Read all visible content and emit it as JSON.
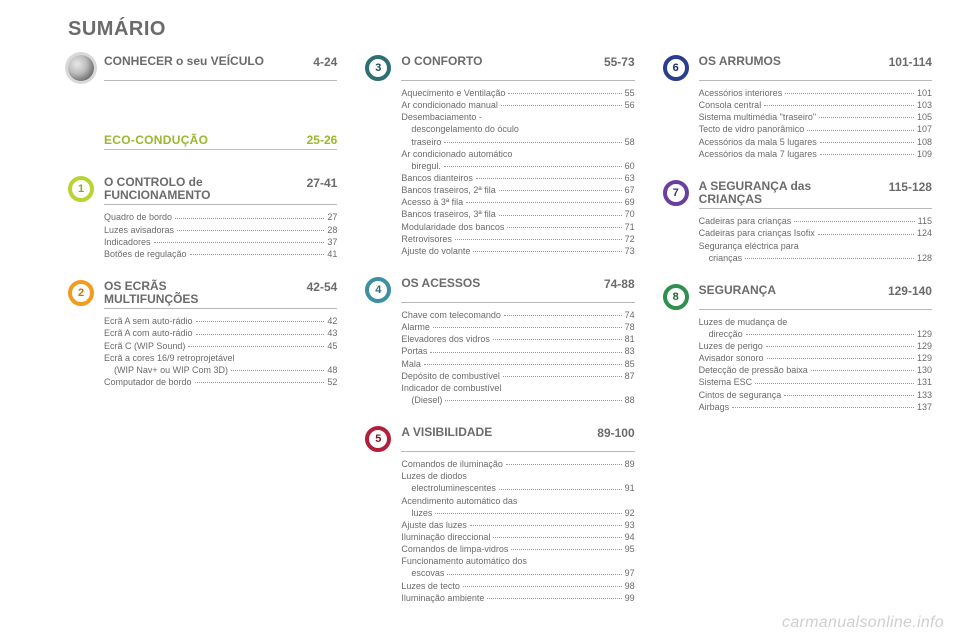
{
  "page_title": "SUMÁRIO",
  "watermark": "carmanualsonline.info",
  "colors": {
    "text": "#6b6b6b",
    "eco_green": "#9ab82e",
    "eco_underline": "#b8d84a",
    "section1": {
      "ring": "#b7d433",
      "num": "#8aa91f"
    },
    "section2": {
      "ring": "#f29c1f",
      "num": "#c97500"
    },
    "section3": {
      "ring": "#2e6f74",
      "num": "#1f4e52"
    },
    "section4": {
      "ring": "#3f8fa3",
      "num": "#2a6a7b"
    },
    "section5": {
      "ring": "#b0203a",
      "num": "#7d1428"
    },
    "section6": {
      "ring": "#2a3e8f",
      "num": "#1c2a66"
    },
    "section7": {
      "ring": "#6b3fa0",
      "num": "#4c2a75"
    },
    "section8": {
      "ring": "#2f8f4f",
      "num": "#1f6536"
    }
  },
  "intro": {
    "title": "CONHECER o seu VEÍCULO",
    "range": "4-24"
  },
  "eco": {
    "title": "ECO-CONDUÇÃO",
    "range": "25-26"
  },
  "sections": [
    {
      "id": "s1",
      "num": "1",
      "title_lines": [
        "O CONTROLO de",
        "FUNCIONAMENTO"
      ],
      "range": "27-41",
      "items": [
        {
          "label": "Quadro de bordo",
          "page": "27"
        },
        {
          "label": "Luzes avisadoras",
          "page": "28"
        },
        {
          "label": "Indicadores",
          "page": "37"
        },
        {
          "label": "Botões de regulação",
          "page": "41"
        }
      ]
    },
    {
      "id": "s2",
      "num": "2",
      "title_lines": [
        "OS ECRÃS",
        "MULTIFUNÇÕES"
      ],
      "range": "42-54",
      "items": [
        {
          "label": "Ecrã A sem auto-rádio",
          "page": "42"
        },
        {
          "label": "Ecrã A com auto-rádio",
          "page": "43"
        },
        {
          "label": "Ecrã C (WIP Sound)",
          "page": "45"
        },
        {
          "label": "Ecrã a cores 16/9 retroprojetável\n  (WIP Nav+ ou WIP Com 3D)",
          "page": "48"
        },
        {
          "label": "Computador de bordo",
          "page": "52"
        }
      ]
    },
    {
      "id": "s3",
      "num": "3",
      "title_lines": [
        "O CONFORTO"
      ],
      "range": "55-73",
      "items": [
        {
          "label": "Aquecimento e Ventilação",
          "page": "55"
        },
        {
          "label": "Ar condicionado manual",
          "page": "56"
        },
        {
          "label": "Desembaciamento -\n  descongelamento do óculo\n  traseiro",
          "page": "58"
        },
        {
          "label": "Ar condicionado automático\n  biregul.",
          "page": "60"
        },
        {
          "label": "Bancos dianteiros",
          "page": "63"
        },
        {
          "label": "Bancos traseiros, 2ª fila",
          "page": "67"
        },
        {
          "label": "Acesso à 3ª fila",
          "page": "69"
        },
        {
          "label": "Bancos traseiros, 3ª fila",
          "page": "70"
        },
        {
          "label": "Modularidade dos bancos",
          "page": "71"
        },
        {
          "label": "Retrovisores",
          "page": "72"
        },
        {
          "label": "Ajuste do volante",
          "page": "73"
        }
      ]
    },
    {
      "id": "s4",
      "num": "4",
      "title_lines": [
        "OS ACESSOS"
      ],
      "range": "74-88",
      "items": [
        {
          "label": "Chave com telecomando",
          "page": "74"
        },
        {
          "label": "Alarme",
          "page": "78"
        },
        {
          "label": "Elevadores dos vidros",
          "page": "81"
        },
        {
          "label": "Portas",
          "page": "83"
        },
        {
          "label": "Mala",
          "page": "85"
        },
        {
          "label": "Depósito de combustível",
          "page": "87"
        },
        {
          "label": "Indicador de combustível\n  (Diesel)",
          "page": "88"
        }
      ]
    },
    {
      "id": "s5",
      "num": "5",
      "title_lines": [
        "A VISIBILIDADE"
      ],
      "range": "89-100",
      "items": [
        {
          "label": "Comandos de iluminação",
          "page": "89"
        },
        {
          "label": "Luzes de diodos\n  electroluminescentes",
          "page": "91"
        },
        {
          "label": "Acendimento automático das\n  luzes",
          "page": "92"
        },
        {
          "label": "Ajuste das luzes",
          "page": "93"
        },
        {
          "label": "Iluminação direccional",
          "page": "94"
        },
        {
          "label": "Comandos de limpa-vidros",
          "page": "95"
        },
        {
          "label": "Funcionamento automático dos\n  escovas",
          "page": "97"
        },
        {
          "label": "Luzes de tecto",
          "page": "98"
        },
        {
          "label": "Iluminação ambiente",
          "page": "99"
        }
      ]
    },
    {
      "id": "s6",
      "num": "6",
      "title_lines": [
        "OS ARRUMOS"
      ],
      "range": "101-114",
      "items": [
        {
          "label": "Acessórios interiores",
          "page": "101"
        },
        {
          "label": "Consola central",
          "page": "103"
        },
        {
          "label": "Sistema multimédia \"traseiro\"",
          "page": "105"
        },
        {
          "label": "Tecto de vidro panorâmico",
          "page": "107"
        },
        {
          "label": "Acessórios da mala 5 lugares",
          "page": "108"
        },
        {
          "label": "Acessórios da mala 7 lugares",
          "page": "109"
        }
      ]
    },
    {
      "id": "s7",
      "num": "7",
      "title_lines": [
        "A SEGURANÇA das",
        "CRIANÇAS"
      ],
      "range": "115-128",
      "items": [
        {
          "label": "Cadeiras para crianças",
          "page": "115"
        },
        {
          "label": "Cadeiras para crianças Isofix",
          "page": "124"
        },
        {
          "label": "Segurança eléctrica para\n  crianças",
          "page": "128"
        }
      ]
    },
    {
      "id": "s8",
      "num": "8",
      "title_lines": [
        "SEGURANÇA"
      ],
      "range": "129-140",
      "items": [
        {
          "label": "Luzes de mudança de\n  direcção",
          "page": "129"
        },
        {
          "label": "Luzes de perigo",
          "page": "129"
        },
        {
          "label": "Avisador sonoro",
          "page": "129"
        },
        {
          "label": "Detecção de pressão baixa",
          "page": "130"
        },
        {
          "label": "Sistema ESC",
          "page": "131"
        },
        {
          "label": "Cintos de segurança",
          "page": "133"
        },
        {
          "label": "Airbags",
          "page": "137"
        }
      ]
    }
  ],
  "layout": {
    "columns": [
      [
        "intro",
        "eco",
        "s1",
        "s2"
      ],
      [
        "s3",
        "s4",
        "s5"
      ],
      [
        "s6",
        "s7",
        "s8"
      ]
    ]
  }
}
